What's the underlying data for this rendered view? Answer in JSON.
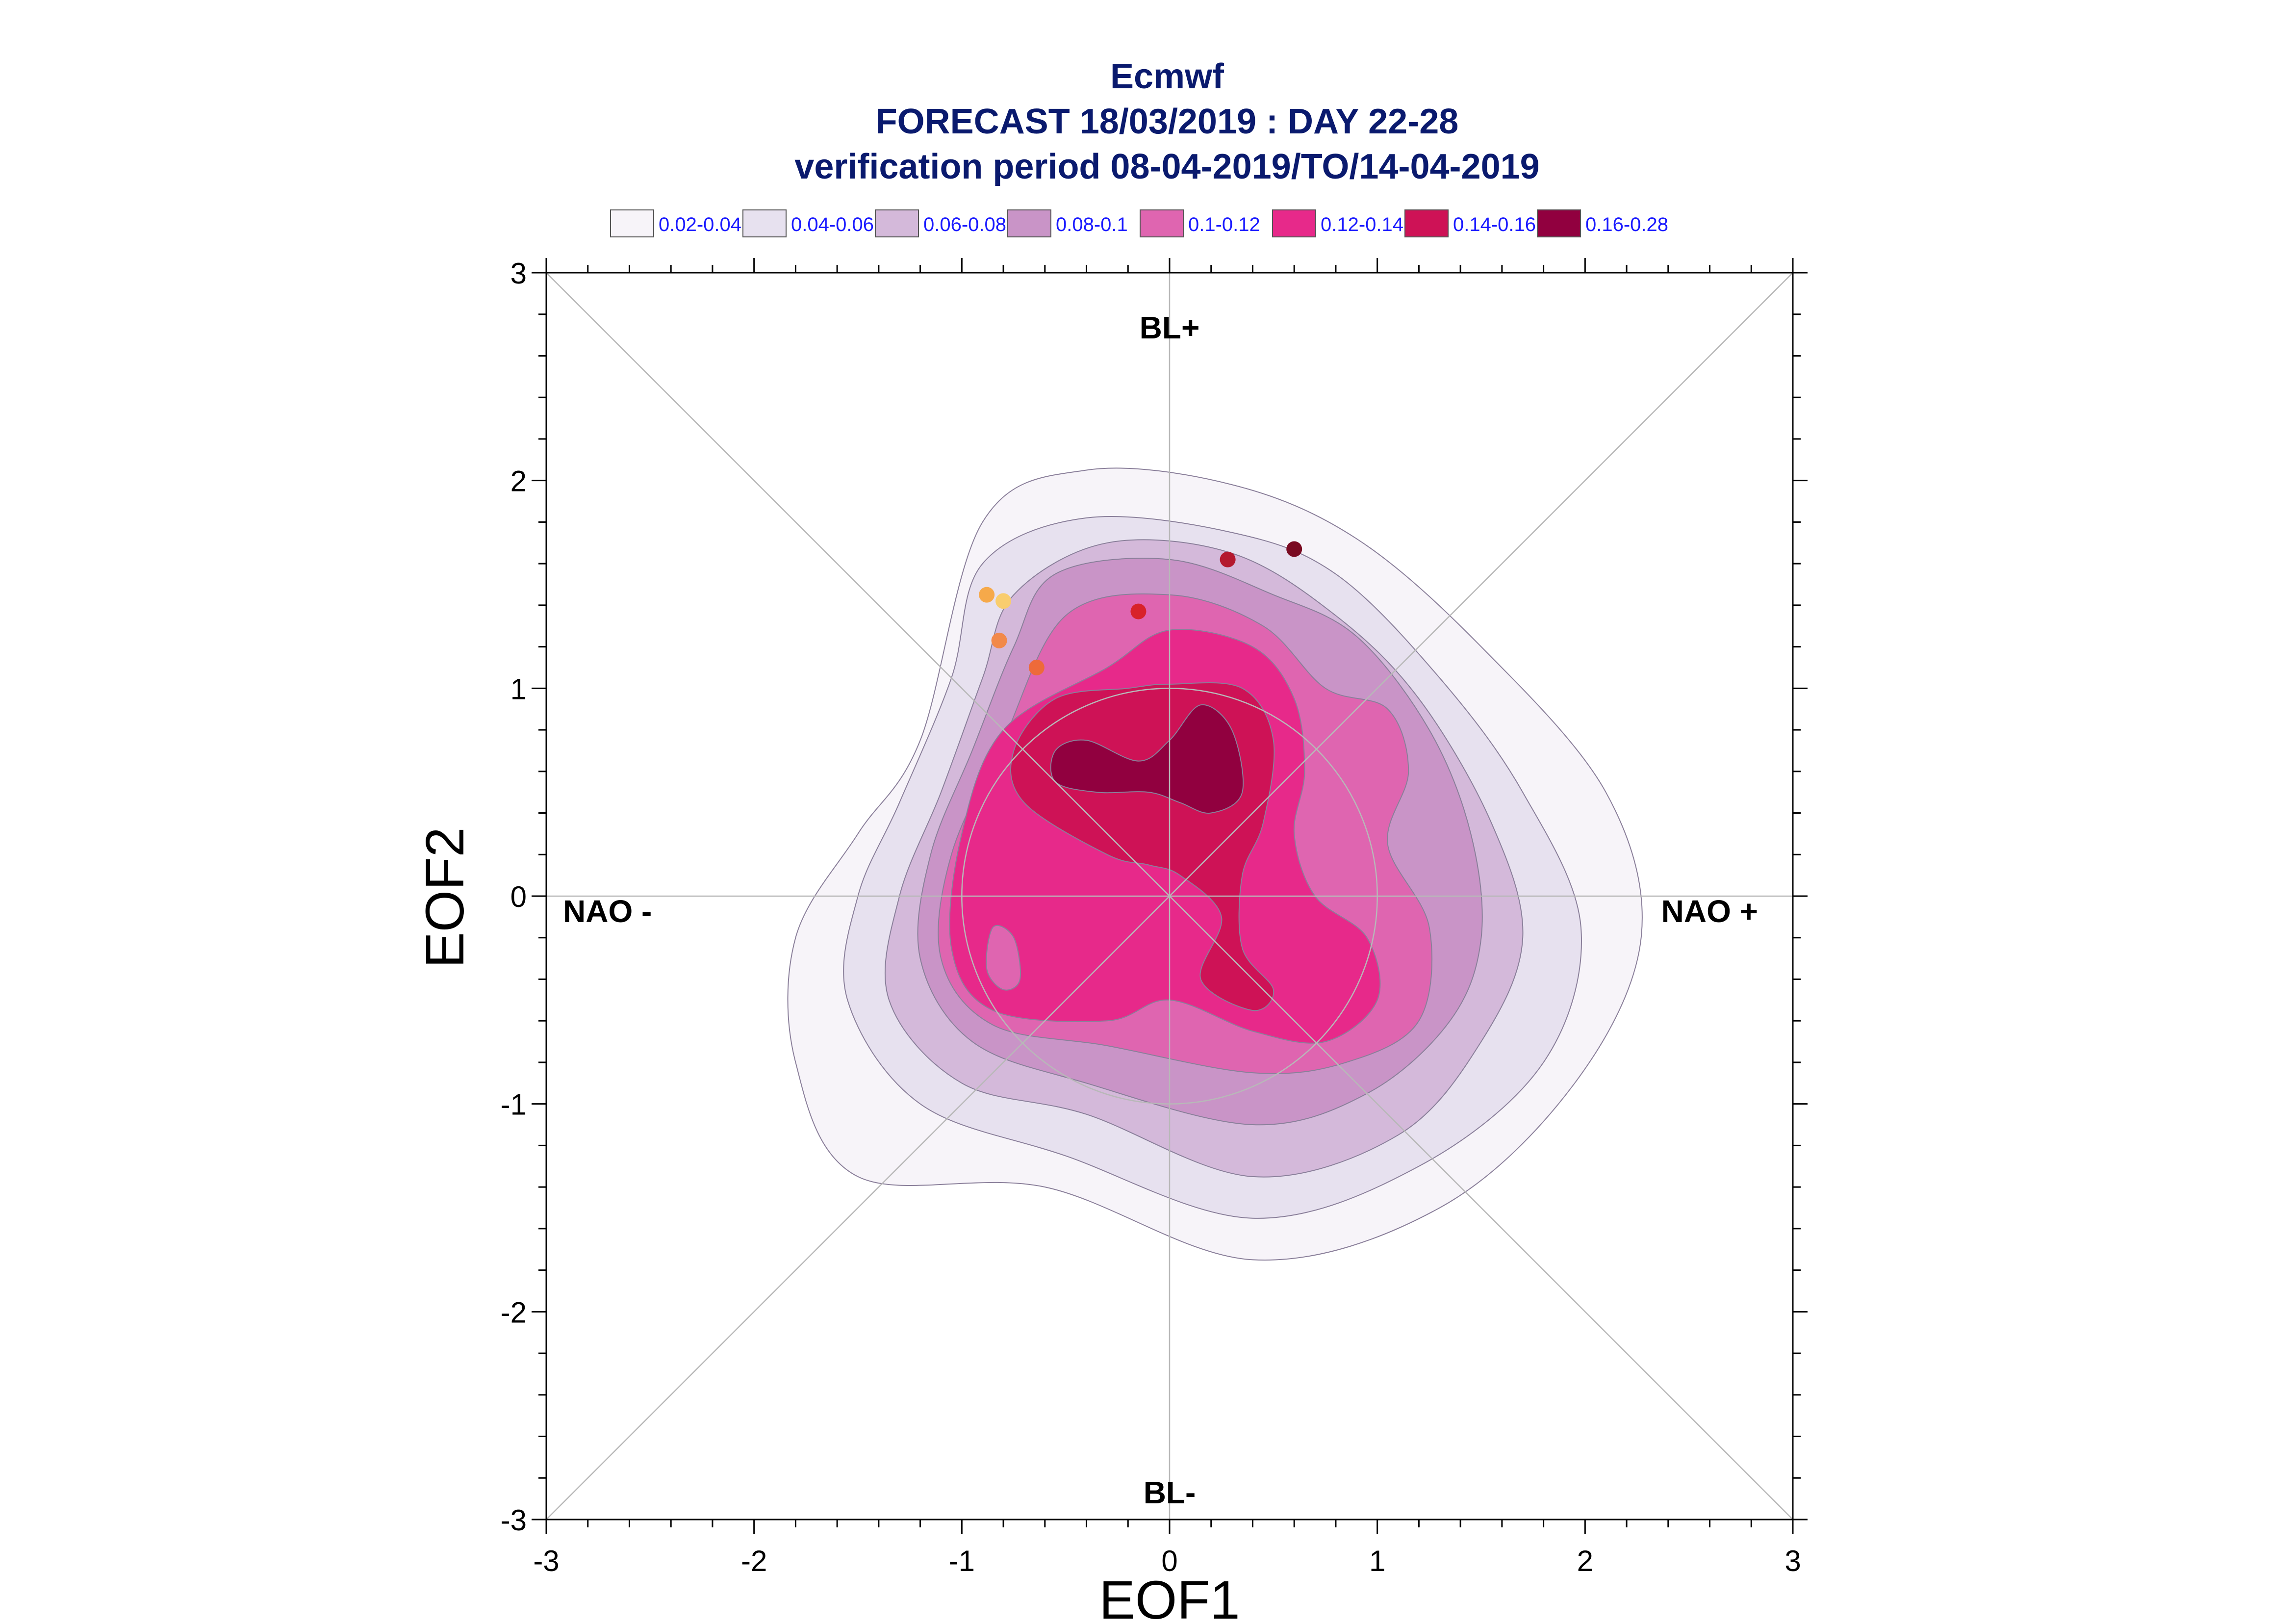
{
  "title": {
    "line1": "Ecmwf",
    "line2": "FORECAST 18/03/2019 : DAY 22-28",
    "line3": "verification period 08-04-2019/TO/14-04-2019"
  },
  "legend": [
    {
      "label": "0.02-0.04",
      "color": "#f7f4f9"
    },
    {
      "label": "0.04-0.06",
      "color": "#e7e1ef"
    },
    {
      "label": "0.06-0.08",
      "color": "#d4b9da"
    },
    {
      "label": "0.08-0.1",
      "color": "#c994c7"
    },
    {
      "label": "0.1-0.12",
      "color": "#df65b0"
    },
    {
      "label": "0.12-0.14",
      "color": "#e7298a"
    },
    {
      "label": "0.14-0.16",
      "color": "#ce1256"
    },
    {
      "label": "0.16-0.28",
      "color": "#91003f"
    }
  ],
  "regimes": {
    "top": "BL+",
    "bottom": "BL-",
    "left": "NAO -",
    "right": "NAO +"
  },
  "chart_data": {
    "type": "scatter",
    "xlabel": "EOF1",
    "ylabel": "EOF2",
    "xlim": [
      -3,
      3
    ],
    "ylim": [
      -3,
      3
    ],
    "xticks": [
      "-3",
      "-2",
      "-1",
      "0",
      "1",
      "2",
      "3"
    ],
    "yticks": [
      "-3",
      "-2",
      "-1",
      "0",
      "1",
      "2",
      "3"
    ],
    "grid": "cross and diagonal reference lines, unit circle",
    "density_contours": {
      "levels": [
        "0.02-0.04",
        "0.04-0.06",
        "0.06-0.08",
        "0.08-0.1",
        "0.1-0.12",
        "0.12-0.14",
        "0.14-0.16",
        "0.16-0.28"
      ],
      "shapes": [
        {
          "level": "0.02-0.04",
          "color": "#f7f4f9",
          "points": [
            [
              -0.9,
              1.8
            ],
            [
              -0.4,
              2.05
            ],
            [
              0.3,
              1.98
            ],
            [
              0.9,
              1.72
            ],
            [
              1.5,
              1.2
            ],
            [
              2.1,
              0.5
            ],
            [
              2.27,
              -0.2
            ],
            [
              1.95,
              -0.9
            ],
            [
              1.3,
              -1.5
            ],
            [
              0.4,
              -1.75
            ],
            [
              -0.6,
              -1.4
            ],
            [
              -1.5,
              -1.35
            ],
            [
              -1.8,
              -0.8
            ],
            [
              -1.8,
              -0.2
            ],
            [
              -1.5,
              0.3
            ],
            [
              -1.2,
              0.75
            ]
          ]
        },
        {
          "level": "0.04-0.06",
          "color": "#e7e1ef",
          "points": [
            [
              -0.9,
              1.6
            ],
            [
              -0.4,
              1.82
            ],
            [
              0.3,
              1.75
            ],
            [
              0.8,
              1.55
            ],
            [
              1.3,
              1.05
            ],
            [
              1.7,
              0.5
            ],
            [
              1.98,
              -0.15
            ],
            [
              1.8,
              -0.8
            ],
            [
              1.2,
              -1.3
            ],
            [
              0.4,
              -1.55
            ],
            [
              -0.5,
              -1.25
            ],
            [
              -1.2,
              -1.0
            ],
            [
              -1.55,
              -0.5
            ],
            [
              -1.5,
              0.0
            ],
            [
              -1.3,
              0.45
            ],
            [
              -1.05,
              1.05
            ]
          ]
        },
        {
          "level": "0.06-0.08",
          "color": "#d4b9da",
          "points": [
            [
              -0.75,
              1.45
            ],
            [
              -0.3,
              1.7
            ],
            [
              0.3,
              1.65
            ],
            [
              0.8,
              1.35
            ],
            [
              1.2,
              0.95
            ],
            [
              1.55,
              0.35
            ],
            [
              1.7,
              -0.2
            ],
            [
              1.5,
              -0.7
            ],
            [
              1.1,
              -1.15
            ],
            [
              0.4,
              -1.35
            ],
            [
              -0.4,
              -1.05
            ],
            [
              -1.0,
              -0.9
            ],
            [
              -1.35,
              -0.5
            ],
            [
              -1.3,
              0.0
            ],
            [
              -1.1,
              0.5
            ],
            [
              -0.9,
              1.05
            ]
          ]
        },
        {
          "level": "0.08-0.1",
          "color": "#c994c7",
          "points": [
            [
              -0.55,
              1.55
            ],
            [
              0.0,
              1.62
            ],
            [
              0.5,
              1.45
            ],
            [
              0.9,
              1.25
            ],
            [
              1.25,
              0.8
            ],
            [
              1.45,
              0.3
            ],
            [
              1.5,
              -0.2
            ],
            [
              1.35,
              -0.6
            ],
            [
              0.95,
              -0.95
            ],
            [
              0.4,
              -1.1
            ],
            [
              -0.4,
              -0.9
            ],
            [
              -0.95,
              -0.7
            ],
            [
              -1.2,
              -0.3
            ],
            [
              -1.15,
              0.2
            ],
            [
              -0.95,
              0.7
            ],
            [
              -0.75,
              1.2
            ]
          ]
        },
        {
          "level": "0.1-0.12",
          "color": "#df65b0",
          "points": [
            [
              -0.5,
              1.35
            ],
            [
              0.0,
              1.45
            ],
            [
              0.45,
              1.3
            ],
            [
              0.75,
              1.0
            ],
            [
              1.05,
              0.9
            ],
            [
              1.15,
              0.6
            ],
            [
              1.05,
              0.25
            ],
            [
              1.25,
              -0.15
            ],
            [
              1.2,
              -0.6
            ],
            [
              0.85,
              -0.8
            ],
            [
              0.4,
              -0.85
            ],
            [
              -0.3,
              -0.72
            ],
            [
              -0.85,
              -0.62
            ],
            [
              -1.1,
              -0.3
            ],
            [
              -1.05,
              0.2
            ],
            [
              -0.8,
              0.75
            ]
          ]
        },
        {
          "level": "0.12-0.14",
          "color": "#e7298a",
          "points": [
            [
              -0.3,
              1.1
            ],
            [
              0.0,
              1.28
            ],
            [
              0.4,
              1.2
            ],
            [
              0.6,
              0.95
            ],
            [
              0.65,
              0.6
            ],
            [
              0.6,
              0.3
            ],
            [
              0.7,
              0.0
            ],
            [
              0.95,
              -0.2
            ],
            [
              1.0,
              -0.5
            ],
            [
              0.75,
              -0.7
            ],
            [
              0.4,
              -0.65
            ],
            [
              0.0,
              -0.5
            ],
            [
              -0.3,
              -0.6
            ],
            [
              -0.85,
              -0.55
            ],
            [
              -1.05,
              -0.25
            ],
            [
              -1.0,
              0.3
            ],
            [
              -0.8,
              0.8
            ]
          ]
        },
        {
          "level": "0.14-0.16",
          "color": "#ce1256",
          "points": [
            [
              -0.55,
              0.95
            ],
            [
              -0.2,
              1.0
            ],
            [
              0.0,
              1.02
            ],
            [
              0.35,
              1.0
            ],
            [
              0.5,
              0.75
            ],
            [
              0.45,
              0.35
            ],
            [
              0.35,
              0.1
            ],
            [
              0.35,
              -0.25
            ],
            [
              0.5,
              -0.45
            ],
            [
              0.4,
              -0.55
            ],
            [
              0.15,
              -0.4
            ],
            [
              0.25,
              -0.1
            ],
            [
              0.05,
              0.1
            ],
            [
              -0.1,
              0.15
            ],
            [
              -0.3,
              0.2
            ],
            [
              -0.7,
              0.45
            ],
            [
              -0.75,
              0.7
            ]
          ]
        },
        {
          "level": "0.16-0.28",
          "color": "#91003f",
          "points": [
            [
              -0.4,
              0.75
            ],
            [
              -0.15,
              0.65
            ],
            [
              0.0,
              0.75
            ],
            [
              0.15,
              0.92
            ],
            [
              0.3,
              0.8
            ],
            [
              0.35,
              0.5
            ],
            [
              0.2,
              0.4
            ],
            [
              0.05,
              0.45
            ],
            [
              -0.1,
              0.5
            ],
            [
              -0.35,
              0.5
            ],
            [
              -0.55,
              0.55
            ],
            [
              -0.55,
              0.7
            ]
          ]
        },
        {
          "level": "0.1-0.12",
          "color": "#df65b0",
          "points": [
            [
              -0.85,
              -0.15
            ],
            [
              -0.75,
              -0.2
            ],
            [
              -0.72,
              -0.4
            ],
            [
              -0.8,
              -0.45
            ],
            [
              -0.88,
              -0.35
            ]
          ]
        }
      ]
    },
    "points": [
      {
        "x": -0.88,
        "y": 1.45,
        "color": "#f6a94a"
      },
      {
        "x": -0.8,
        "y": 1.42,
        "color": "#f9cd6e"
      },
      {
        "x": -0.82,
        "y": 1.23,
        "color": "#f2894a"
      },
      {
        "x": -0.64,
        "y": 1.1,
        "color": "#ee6a3a"
      },
      {
        "x": -0.15,
        "y": 1.37,
        "color": "#d8222a"
      },
      {
        "x": 0.28,
        "y": 1.62,
        "color": "#b4182e"
      },
      {
        "x": 0.6,
        "y": 1.67,
        "color": "#7a0a22"
      }
    ]
  }
}
